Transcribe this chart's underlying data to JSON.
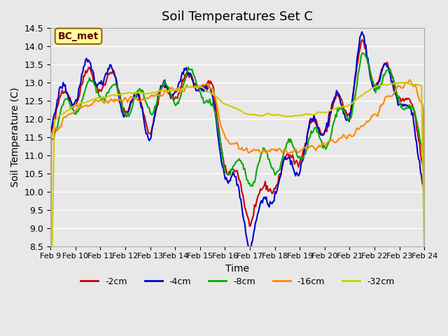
{
  "title": "Soil Temperatures Set C",
  "xlabel": "Time",
  "ylabel": "Soil Temperature (C)",
  "ylim": [
    8.5,
    14.5
  ],
  "bg_color": "#e8e8e8",
  "plot_bg": "#e8e8e8",
  "annotation": "BC_met",
  "annotation_bg": "#ffff99",
  "annotation_border": "#996600",
  "xtick_labels": [
    "Feb 9",
    "Feb 10",
    "Feb 11",
    "Feb 12",
    "Feb 13",
    "Feb 14",
    "Feb 15",
    "Feb 16",
    "Feb 17",
    "Feb 18",
    "Feb 19",
    "Feb 20",
    "Feb 21",
    "Feb 22",
    "Feb 23",
    "Feb 24"
  ],
  "ytick_values": [
    8.5,
    9.0,
    9.5,
    10.0,
    10.5,
    11.0,
    11.5,
    12.0,
    12.5,
    13.0,
    13.5,
    14.0,
    14.5
  ],
  "series": {
    "-2cm": {
      "color": "#cc0000",
      "lw": 1.5
    },
    "-4cm": {
      "color": "#0000cc",
      "lw": 1.5
    },
    "-8cm": {
      "color": "#00aa00",
      "lw": 1.5
    },
    "-16cm": {
      "color": "#ff8800",
      "lw": 1.5
    },
    "-32cm": {
      "color": "#cccc00",
      "lw": 1.5
    }
  },
  "n_points": 384,
  "days": 15
}
